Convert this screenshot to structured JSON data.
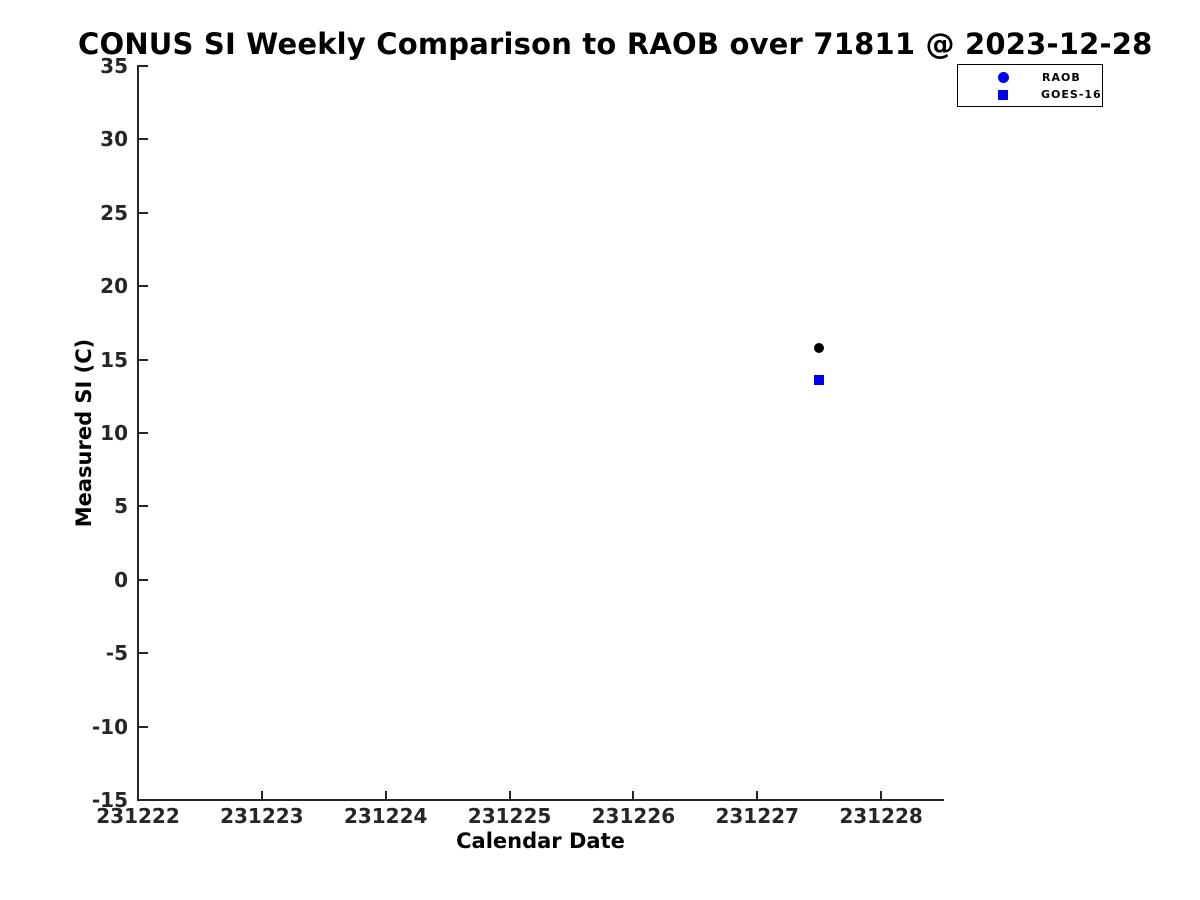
{
  "chart_data": {
    "type": "scatter",
    "title": "CONUS SI Weekly Comparison to RAOB over 71811 @ 2023-12-28",
    "xlabel": "Calendar Date",
    "ylabel": "Measured SI (C)",
    "xlim": [
      231222,
      231228.5
    ],
    "ylim": [
      -15,
      35
    ],
    "xticks": [
      231222,
      231223,
      231224,
      231225,
      231226,
      231227,
      231228
    ],
    "yticks": [
      -15,
      -10,
      -5,
      0,
      5,
      10,
      15,
      20,
      25,
      30,
      35
    ],
    "grid": false,
    "legend_position": "top-right-outside",
    "series": [
      {
        "name": "RAOB",
        "marker": "circle",
        "point_color": "#000000",
        "legend_marker_color": "#0000ee",
        "points": [
          {
            "x": 231227.5,
            "y": 15.8
          }
        ]
      },
      {
        "name": "GOES-16",
        "marker": "square",
        "point_color": "#0000ee",
        "legend_marker_color": "#0000ee",
        "points": [
          {
            "x": 231227.5,
            "y": 13.6
          }
        ]
      }
    ]
  },
  "colors": {
    "background": "#ffffff",
    "axis": "#262626",
    "text": "#000000",
    "accent_blue": "#0000ee"
  }
}
